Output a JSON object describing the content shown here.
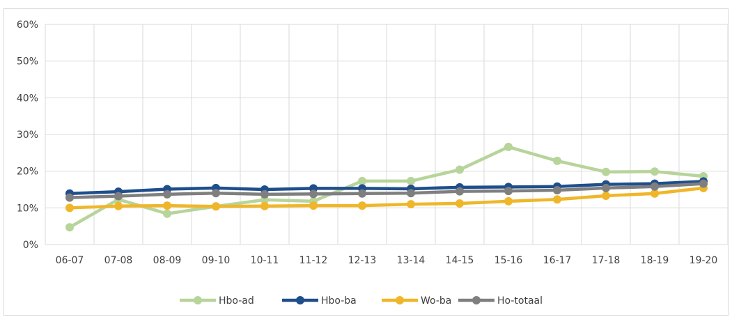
{
  "chart_data": {
    "type": "line",
    "title": "",
    "xlabel": "",
    "ylabel": "",
    "categories": [
      "06-07",
      "07-08",
      "08-09",
      "09-10",
      "10-11",
      "11-12",
      "12-13",
      "13-14",
      "14-15",
      "15-16",
      "16-17",
      "17-18",
      "18-19",
      "19-20"
    ],
    "ylim": [
      0,
      60
    ],
    "y_ticks": [
      "0%",
      "10%",
      "20%",
      "30%",
      "40%",
      "50%",
      "60%"
    ],
    "y_tick_values": [
      0,
      10,
      20,
      30,
      40,
      50,
      60
    ],
    "grid": true,
    "legend": "bottom",
    "series": [
      {
        "name": "Hbo-ad",
        "color": "#b7d49a",
        "values": [
          4.7,
          12.3,
          8.4,
          10.4,
          12.2,
          11.8,
          17.3,
          17.3,
          20.4,
          26.6,
          22.8,
          19.8,
          19.9,
          18.6
        ]
      },
      {
        "name": "Hbo-ba",
        "color": "#1f4e8c",
        "values": [
          13.9,
          14.4,
          15.1,
          15.4,
          15.0,
          15.3,
          15.3,
          15.2,
          15.6,
          15.7,
          15.8,
          16.4,
          16.6,
          17.2
        ]
      },
      {
        "name": "Wo-ba",
        "color": "#f0b62a",
        "values": [
          10.0,
          10.5,
          10.6,
          10.4,
          10.5,
          10.6,
          10.6,
          11.0,
          11.2,
          11.8,
          12.3,
          13.3,
          13.9,
          15.4
        ]
      },
      {
        "name": "Ho-totaal",
        "color": "#7f7f7f",
        "values": [
          12.8,
          13.2,
          13.7,
          14.0,
          13.7,
          13.8,
          13.9,
          14.0,
          14.5,
          14.6,
          14.8,
          15.4,
          15.8,
          16.6
        ]
      }
    ]
  }
}
